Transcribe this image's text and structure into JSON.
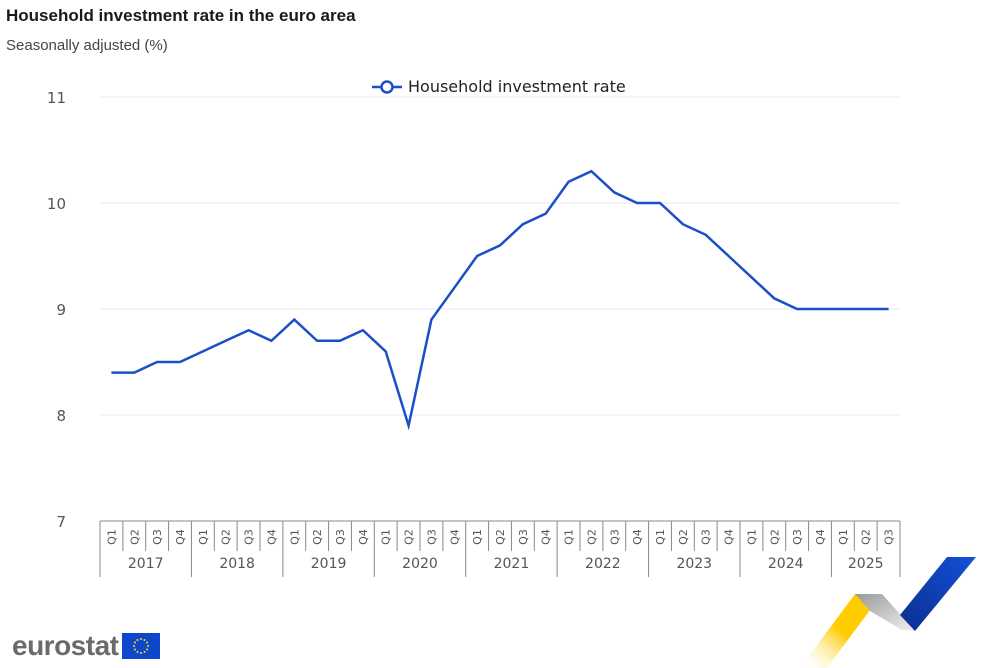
{
  "header": {
    "title": "Household investment rate in the euro area",
    "subtitle": "Seasonally adjusted (%)"
  },
  "legend": {
    "label": "Household investment rate",
    "color": "#1a4fc8"
  },
  "branding": {
    "logo_text": "eurostat"
  },
  "chart_data": {
    "type": "line",
    "title": "Household investment rate in the euro area",
    "subtitle": "Seasonally adjusted (%)",
    "xlabel": "",
    "ylabel": "",
    "ylim": [
      7,
      11
    ],
    "yticks": [
      7,
      8,
      9,
      10,
      11
    ],
    "grid": true,
    "legend_position": "top-center",
    "years": [
      "2017",
      "2018",
      "2019",
      "2020",
      "2021",
      "2022",
      "2023",
      "2024",
      "2025"
    ],
    "categories": [
      "2017-Q1",
      "2017-Q2",
      "2017-Q3",
      "2017-Q4",
      "2018-Q1",
      "2018-Q2",
      "2018-Q3",
      "2018-Q4",
      "2019-Q1",
      "2019-Q2",
      "2019-Q3",
      "2019-Q4",
      "2020-Q1",
      "2020-Q2",
      "2020-Q3",
      "2020-Q4",
      "2021-Q1",
      "2021-Q2",
      "2021-Q3",
      "2021-Q4",
      "2022-Q1",
      "2022-Q2",
      "2022-Q3",
      "2022-Q4",
      "2023-Q1",
      "2023-Q2",
      "2023-Q3",
      "2023-Q4",
      "2024-Q1",
      "2024-Q2",
      "2024-Q3",
      "2024-Q4",
      "2025-Q1",
      "2025-Q2",
      "2025-Q3"
    ],
    "series": [
      {
        "name": "Household investment rate",
        "color": "#1a4fc8",
        "values": [
          8.4,
          8.4,
          8.5,
          8.5,
          8.6,
          8.7,
          8.8,
          8.7,
          8.9,
          8.7,
          8.7,
          8.8,
          8.6,
          7.9,
          8.9,
          9.2,
          9.5,
          9.6,
          9.8,
          9.9,
          10.2,
          10.3,
          10.1,
          10.0,
          10.0,
          9.8,
          9.7,
          9.5,
          9.3,
          9.1,
          9.0,
          9.0,
          9.0,
          9.0,
          9.0
        ]
      }
    ]
  }
}
